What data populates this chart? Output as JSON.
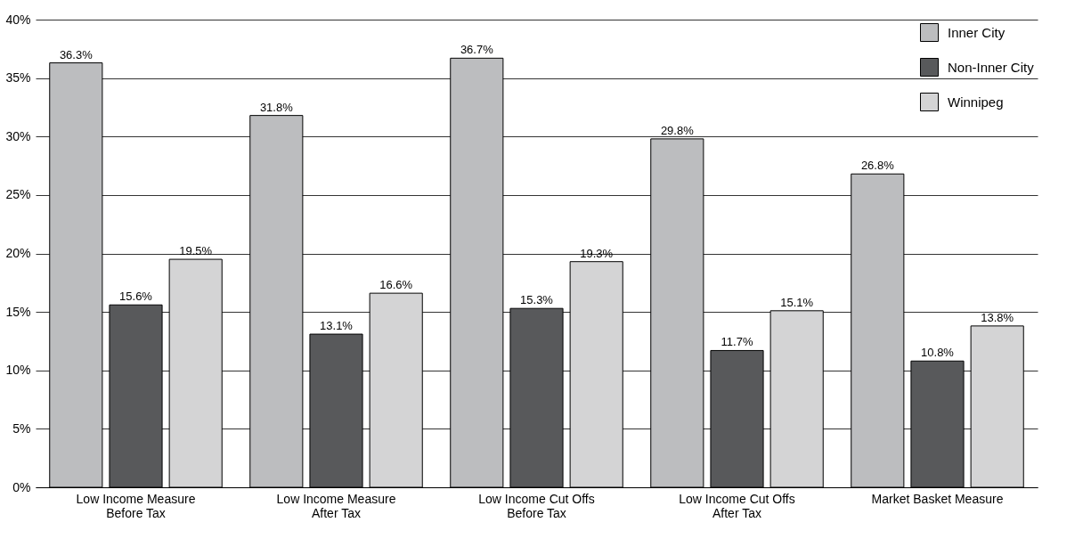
{
  "chart_data": {
    "type": "bar",
    "categories": [
      "Low Income Measure Before Tax",
      "Low Income Measure After Tax",
      "Low Income Cut Offs Before Tax",
      "Low Income Cut Offs After Tax",
      "Market Basket Measure"
    ],
    "series": [
      {
        "name": "Inner City",
        "color": "#bcbdbf",
        "values": [
          36.3,
          31.8,
          36.7,
          29.8,
          26.8
        ],
        "value_labels": [
          "36.3%",
          "31.8%",
          "36.7%",
          "29.8%",
          "26.8%"
        ]
      },
      {
        "name": "Non-Inner City",
        "color": "#58595b",
        "values": [
          15.6,
          13.1,
          15.3,
          11.7,
          10.8
        ],
        "value_labels": [
          "15.6%",
          "13.1%",
          "15.3%",
          "11.7%",
          "10.8%"
        ]
      },
      {
        "name": "Winnipeg",
        "color": "#d4d4d5",
        "values": [
          19.5,
          16.6,
          19.3,
          15.1,
          13.8
        ],
        "value_labels": [
          "19.5%",
          "16.6%",
          "19.3%",
          "15.1%",
          "13.8%"
        ]
      }
    ],
    "ylim": [
      0,
      40
    ],
    "yticks": [
      {
        "value": 0,
        "label": "0%"
      },
      {
        "value": 5,
        "label": "5%"
      },
      {
        "value": 10,
        "label": "10%"
      },
      {
        "value": 15,
        "label": "15%"
      },
      {
        "value": 20,
        "label": "20%"
      },
      {
        "value": 25,
        "label": "25%"
      },
      {
        "value": 30,
        "label": "30%"
      },
      {
        "value": 35,
        "label": "35%"
      },
      {
        "value": 40,
        "label": "40%"
      }
    ],
    "grid": "y",
    "legend": "top right"
  }
}
